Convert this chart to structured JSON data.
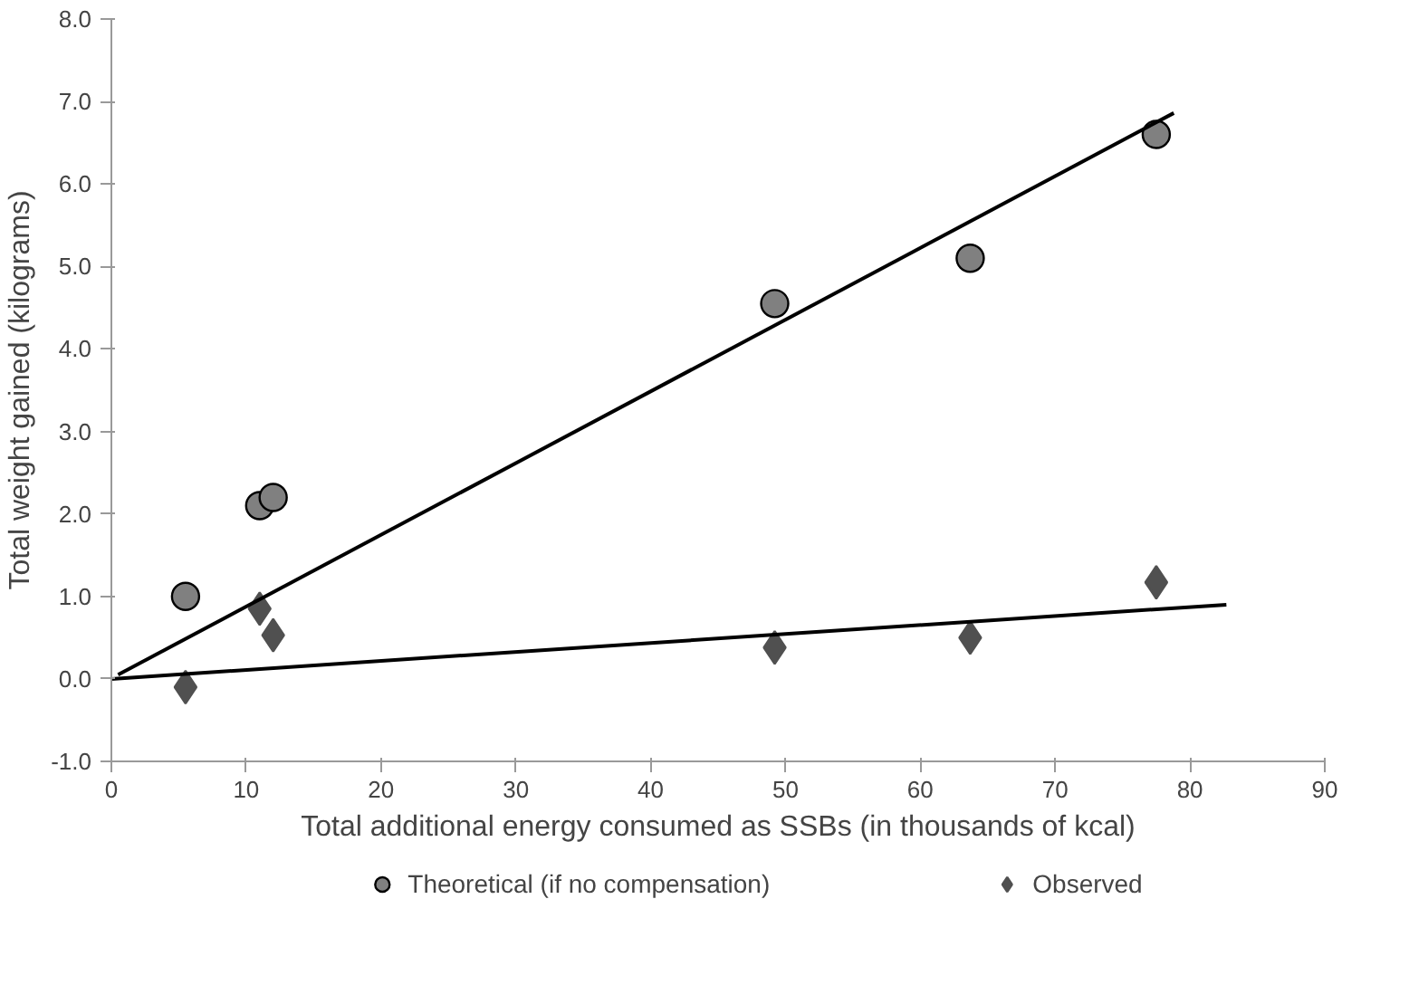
{
  "chart_data": {
    "type": "scatter",
    "xlabel": "Total additional energy consumed as SSBs (in thousands of kcal)",
    "ylabel": "Total weight gained (kilograms)",
    "xlim": [
      0,
      90
    ],
    "xticks": [
      0,
      10,
      20,
      30,
      40,
      50,
      60,
      70,
      80,
      90
    ],
    "ylim": [
      -1,
      8
    ],
    "yticks": [
      {
        "value": -1,
        "label": "-1.0"
      },
      {
        "value": 0,
        "label": "0.0"
      },
      {
        "value": 1,
        "label": "1.0"
      },
      {
        "value": 2,
        "label": "2.0"
      },
      {
        "value": 3,
        "label": "3.0"
      },
      {
        "value": 4,
        "label": "4.0"
      },
      {
        "value": 5,
        "label": "5.0"
      },
      {
        "value": 6,
        "label": "6.0"
      },
      {
        "value": 7,
        "label": "7.0"
      },
      {
        "value": 8,
        "label": "8.0"
      }
    ],
    "grid": false,
    "legend": "bottom",
    "series": [
      {
        "name": "Theoretical (if no compensation)",
        "color": "#808080",
        "marker": "circle",
        "x": [
          5.5,
          11,
          12,
          49.2,
          63.7,
          77.5
        ],
        "values": [
          1.0,
          2.1,
          2.2,
          4.55,
          5.1,
          6.6
        ]
      },
      {
        "name": "Observed",
        "color": "#505050",
        "marker": "diamond",
        "x": [
          5.5,
          11,
          12,
          49.2,
          63.7,
          77.5
        ],
        "values": [
          -0.1,
          0.85,
          0.53,
          0.38,
          0.5,
          1.17
        ]
      },
      {
        "type": "line",
        "color": "#000000",
        "x": [
          0.5,
          78.8
        ],
        "values": [
          0.05,
          6.86
        ]
      },
      {
        "type": "line",
        "color": "#000000",
        "x": [
          0,
          82.7
        ],
        "values": [
          0,
          0.9
        ]
      }
    ]
  }
}
